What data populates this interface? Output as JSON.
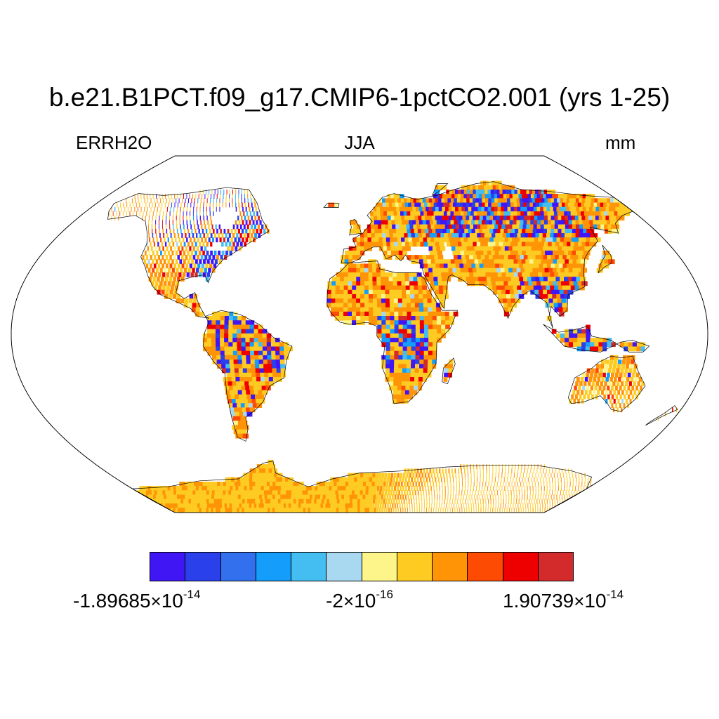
{
  "title": "b.e21.B1PCT.f09_g17.CMIP6-1pctCO2.001 (yrs 1-25)",
  "left_label": "ERRH2O",
  "center_label": "JJA",
  "right_label": "mm",
  "map": {
    "projection": "Robinson",
    "field": "ERRH2O",
    "season": "JJA",
    "land_only": true,
    "coastlines": true
  },
  "colorbar": {
    "colors": [
      "#4016f5",
      "#2a40ea",
      "#3370ee",
      "#149dfa",
      "#44bdf0",
      "#a9d8f1",
      "#fdf58a",
      "#fecb23",
      "#fe9406",
      "#fd4b03",
      "#ee0000",
      "#d32b2b"
    ],
    "min_label": {
      "mantissa": "-1.89685",
      "exponent": "-14"
    },
    "mid_label": {
      "mantissa": "-2",
      "exponent": "-16"
    },
    "max_label": {
      "mantissa": "1.90739",
      "exponent": "-14"
    },
    "times_sign": "×",
    "base": "10"
  }
}
